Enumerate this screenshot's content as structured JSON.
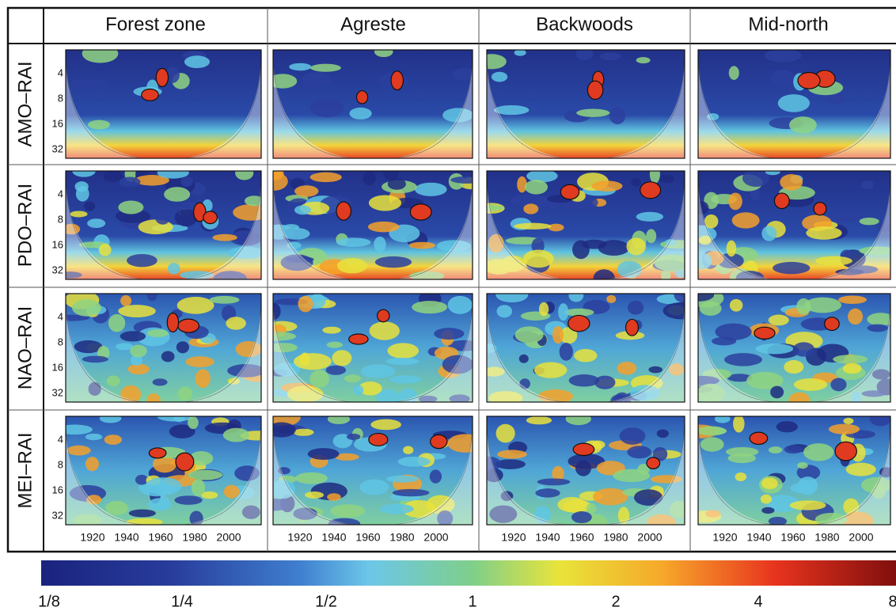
{
  "columns": [
    "Forest zone",
    "Agreste",
    "Backwoods",
    "Mid-north"
  ],
  "rows": [
    "AMO–RAI",
    "PDO–RAI",
    "NAO–RAI",
    "MEI–RAI"
  ],
  "period_ticks": [
    4,
    8,
    16,
    32
  ],
  "year_ticks": [
    1920,
    1940,
    1960,
    1980,
    2000
  ],
  "colorbar_labels": [
    "1/8",
    "1/4",
    "1/2",
    "1",
    "2",
    "4",
    "8"
  ]
}
